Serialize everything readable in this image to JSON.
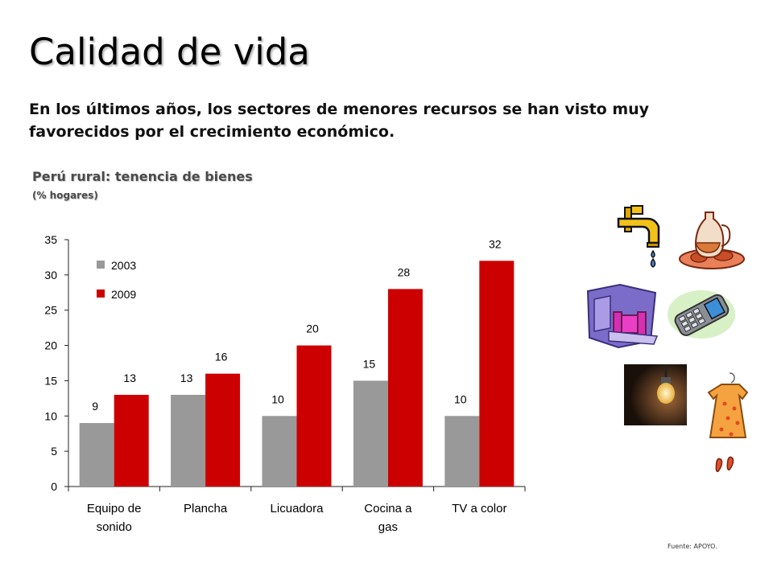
{
  "slide": {
    "title": "Calidad de vida",
    "subtitle": "En los últimos años, los sectores de menores recursos se han visto muy favorecidos por el crecimiento económico.",
    "chart_heading": "Perú rural: tenencia de bienes",
    "chart_subheading": "(% hogares)",
    "source": "Fuente: APOYO."
  },
  "icons": [
    "faucet-icon",
    "pitcher-and-food-icon",
    "furniture-icon",
    "cellphone-icon",
    "lightbulb-photo",
    "dress-and-shoes-icon"
  ],
  "chart_data": {
    "type": "bar",
    "title": "Perú rural: tenencia de bienes",
    "ylabel": "% hogares",
    "xlabel": "",
    "categories": [
      [
        "Equipo de",
        "sonido"
      ],
      [
        "Plancha"
      ],
      [
        "Licuadora"
      ],
      [
        "Cocina a",
        "gas"
      ],
      [
        "TV a color"
      ]
    ],
    "series": [
      {
        "name": "2003",
        "values": [
          9,
          13,
          10,
          15,
          10
        ],
        "color": "#999999"
      },
      {
        "name": "2009",
        "values": [
          13,
          16,
          20,
          28,
          32
        ],
        "color": "#cc0000"
      }
    ],
    "ylim": [
      0,
      35
    ],
    "yticks": [
      0,
      5,
      10,
      15,
      20,
      25,
      30,
      35
    ],
    "grid": false,
    "legend": "top-left"
  }
}
